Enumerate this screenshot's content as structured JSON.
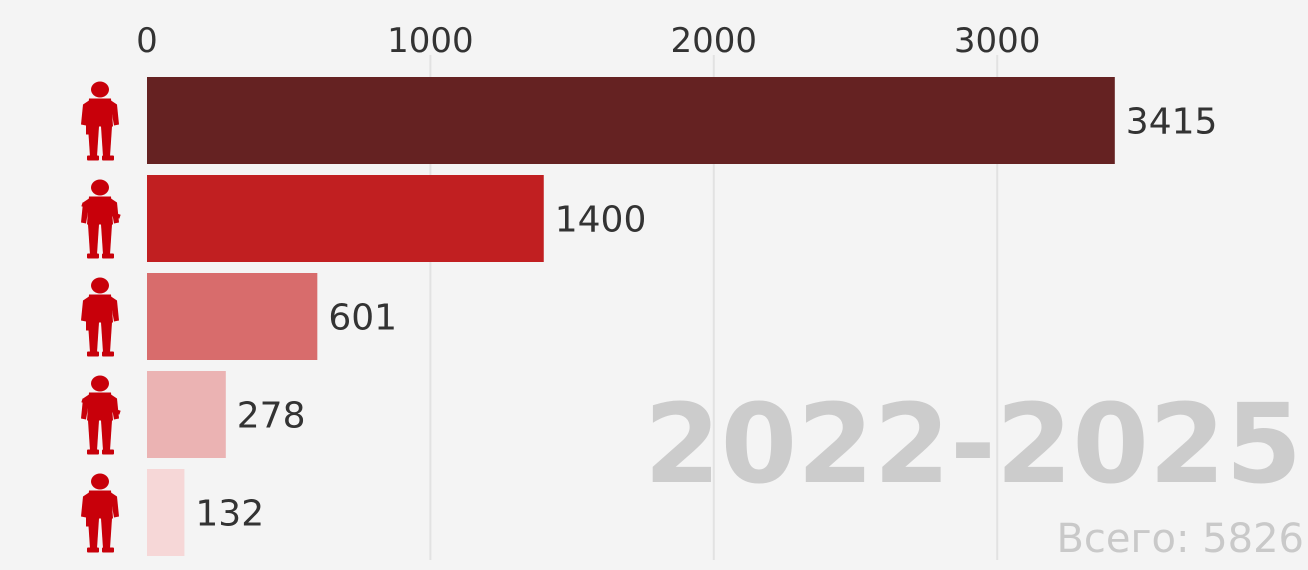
{
  "chart_data": {
    "type": "bar",
    "orientation": "horizontal",
    "categories": [
      "",
      "",
      "",
      "",
      ""
    ],
    "values": [
      3415,
      1400,
      601,
      278,
      132
    ],
    "value_labels": [
      "3415",
      "1400",
      "601",
      "278",
      "132"
    ],
    "category_icons": [
      "soldier-icon",
      "soldier-icon",
      "soldier-icon",
      "soldier-icon",
      "soldier-icon"
    ],
    "bar_colors": [
      "#652222",
      "#c11f21",
      "#d86c6c",
      "#ebb3b3",
      "#f6d7d7"
    ],
    "icon_color": "#c8000a",
    "xlim": [
      0,
      3500
    ],
    "x_ticks": [
      0,
      1000,
      2000,
      3000
    ],
    "x_tick_labels": [
      "0",
      "1000",
      "2000",
      "3000"
    ],
    "x_axis_position": "top",
    "grid": "vertical",
    "grid_color": "#e2e2e2",
    "title": "",
    "xlabel": "",
    "ylabel": "",
    "period_label": "2022-2025",
    "total_label": "Всего: 5826"
  }
}
